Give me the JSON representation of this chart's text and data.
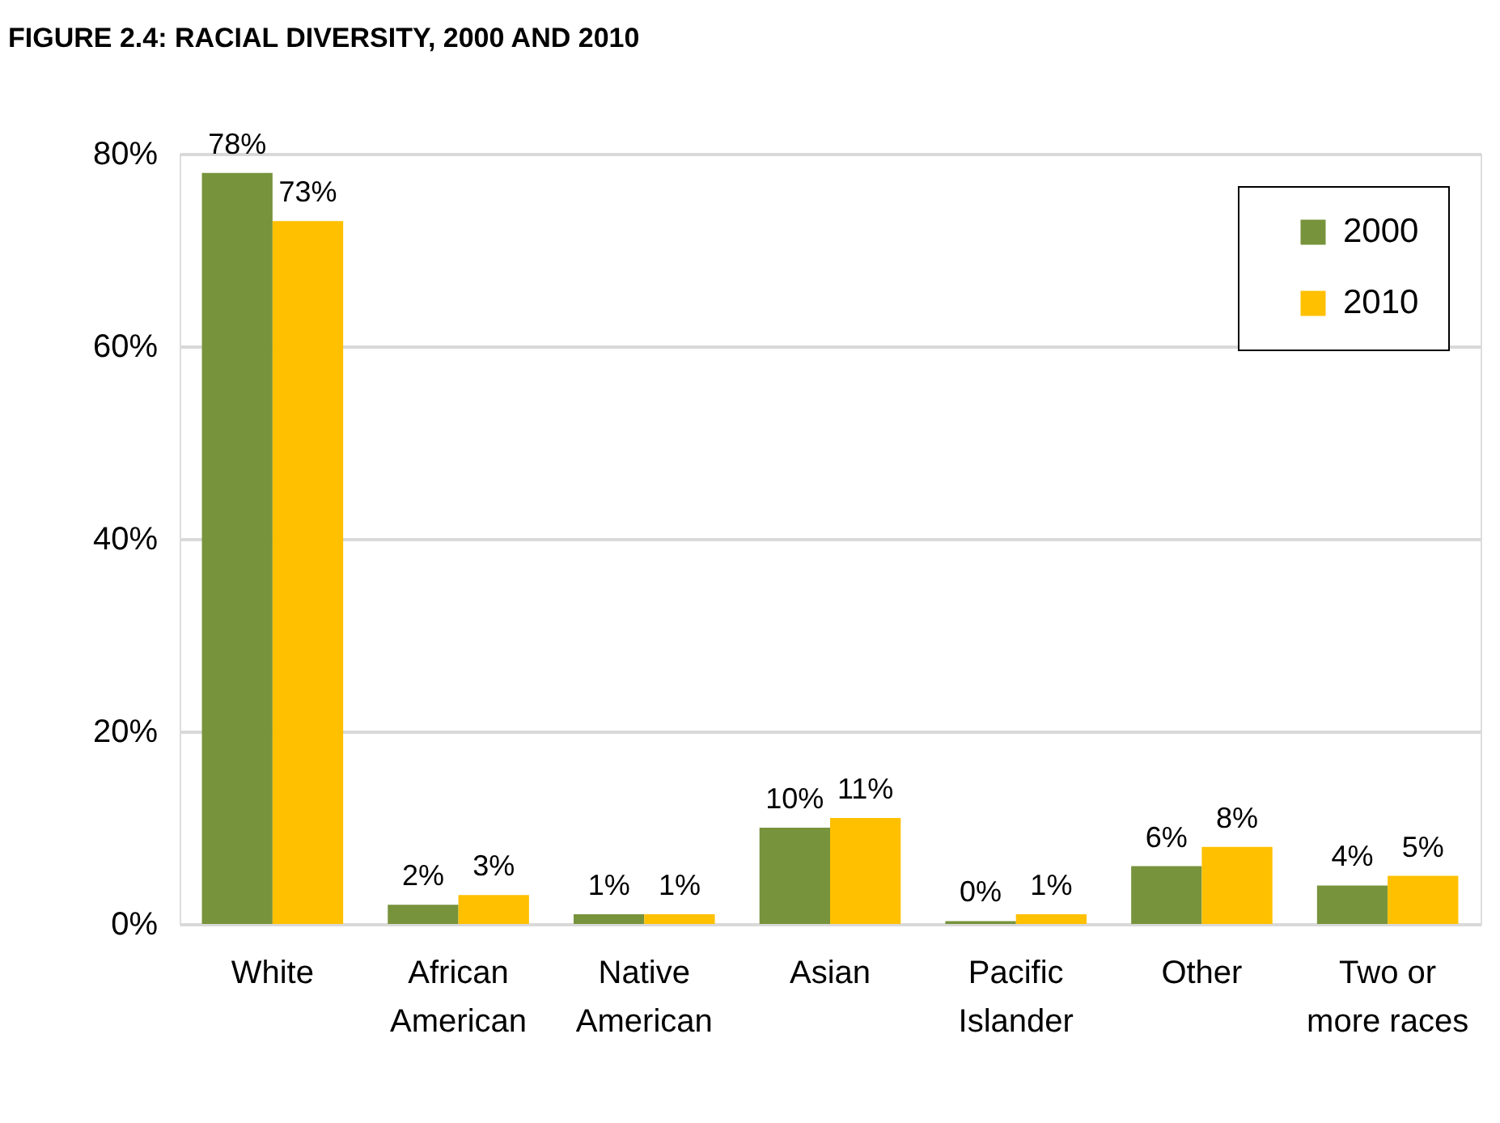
{
  "chart_data": {
    "type": "bar",
    "title": "FIGURE 2.4: RACIAL DIVERSITY, 2000 AND 2010",
    "categories": [
      "White",
      "African American",
      "Native American",
      "Asian",
      "Pacific Islander",
      "Other",
      "Two or more races"
    ],
    "series": [
      {
        "name": "2000",
        "color": "#77933c",
        "values": [
          78,
          2,
          1,
          10,
          0.3,
          6,
          4
        ],
        "value_labels": [
          "78%",
          "2%",
          "1%",
          "10%",
          "0%",
          "6%",
          "4%"
        ]
      },
      {
        "name": "2010",
        "color": "#ffc000",
        "values": [
          73,
          3,
          1,
          11,
          1,
          8,
          5
        ],
        "value_labels": [
          "73%",
          "3%",
          "1%",
          "11%",
          "1%",
          "8%",
          "5%"
        ]
      }
    ],
    "ylim": [
      0,
      80
    ],
    "yticks": [
      {
        "value": 0,
        "label": "0%"
      },
      {
        "value": 20,
        "label": "20%"
      },
      {
        "value": 40,
        "label": "40%"
      },
      {
        "value": 60,
        "label": "60%"
      },
      {
        "value": 80,
        "label": "80%"
      }
    ],
    "grid": "y",
    "legend": "top right"
  }
}
